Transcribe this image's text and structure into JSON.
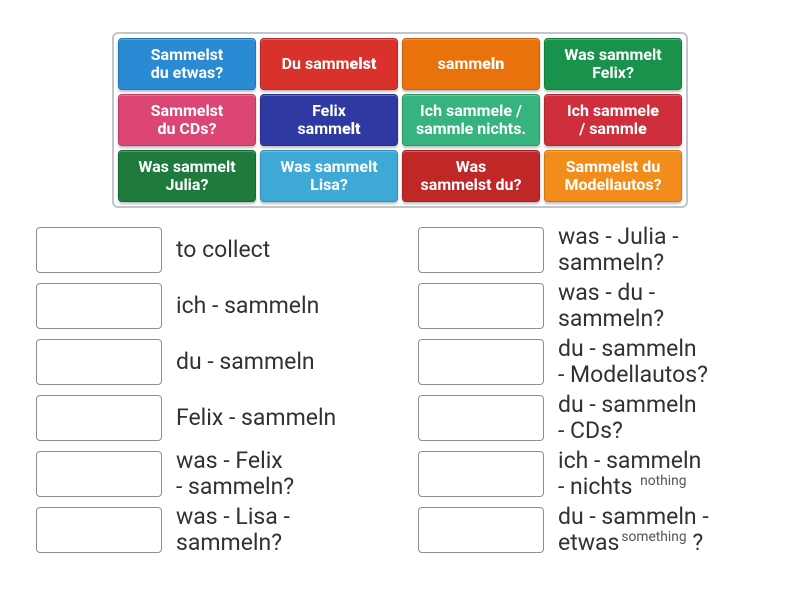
{
  "colors": {
    "blue": "#2a8ad4",
    "red": "#d9322c",
    "orange": "#e9720d",
    "green": "#19934c",
    "pink": "#dc4674",
    "indigo": "#2e3aa1",
    "teal": "#36b37e",
    "redv": "#cf2f3c",
    "greenD": "#1f7a3d",
    "blueL": "#3fa9d6",
    "redD": "#c02828",
    "orangeL": "#f28c1b",
    "border": "#c0c6cc"
  },
  "cards": [
    {
      "id": "c1",
      "colorKey": "blue",
      "html": "Sammelst<br>du etwas?"
    },
    {
      "id": "c2",
      "colorKey": "red",
      "html": "Du samm<b>elst</b>"
    },
    {
      "id": "c3",
      "colorKey": "orange",
      "html": "samm<b>eln</b>"
    },
    {
      "id": "c4",
      "colorKey": "green",
      "html": "Was sammelt<br>Felix?"
    },
    {
      "id": "c5",
      "colorKey": "pink",
      "html": "Sammelst<br>du CDs?"
    },
    {
      "id": "c6",
      "colorKey": "indigo",
      "html": "Felix<br>samm<b>elt</b>"
    },
    {
      "id": "c7",
      "colorKey": "teal",
      "html": "Ich sammele /<br>sammle nichts."
    },
    {
      "id": "c8",
      "colorKey": "redv",
      "html": "Ich sammel<b>e</b><br>/ samml<b>e</b>"
    },
    {
      "id": "c9",
      "colorKey": "greenD",
      "html": "Was sammelt<br>Julia?"
    },
    {
      "id": "c10",
      "colorKey": "blueL",
      "html": "Was sammelt<br>Lisa?"
    },
    {
      "id": "c11",
      "colorKey": "redD",
      "html": "Was<br>sammelst du?"
    },
    {
      "id": "c12",
      "colorKey": "orangeL",
      "html": "Sammelst du<br>Modellautos?"
    }
  ],
  "answers_left": [
    {
      "id": "a1",
      "clue_html": "to collect"
    },
    {
      "id": "a2",
      "clue_html": "ich - sammeln"
    },
    {
      "id": "a3",
      "clue_html": "du - sammeln"
    },
    {
      "id": "a4",
      "clue_html": "Felix - sammeln"
    },
    {
      "id": "a5",
      "clue_html": "was - Felix<br>- sammeln?"
    },
    {
      "id": "a6",
      "clue_html": "was - Lisa -<br>sammeln?"
    }
  ],
  "answers_right": [
    {
      "id": "a7",
      "clue_html": "was - Julia -<br>sammeln?"
    },
    {
      "id": "a8",
      "clue_html": "was - du -<br>sammeln?"
    },
    {
      "id": "a9",
      "clue_html": "du - sammeln<br>- Modellautos?"
    },
    {
      "id": "a10",
      "clue_html": "du - sammeln<br>- CDs?"
    },
    {
      "id": "a11",
      "clue_html": "ich - sammeln<br>- nichts <sup>nothing</sup>"
    },
    {
      "id": "a12",
      "clue_html": "du - sammeln -<br>etwas<sup>something</sup> ?"
    }
  ]
}
